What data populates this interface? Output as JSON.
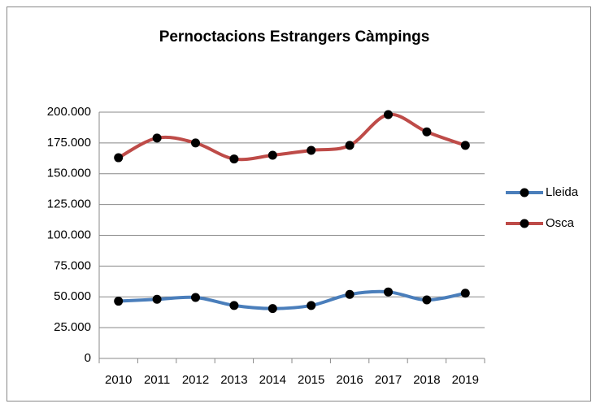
{
  "chart_data": {
    "type": "line",
    "title": "Pernoctacions Estrangers  Càmpings",
    "categories": [
      "2010",
      "2011",
      "2012",
      "2013",
      "2014",
      "2015",
      "2016",
      "2017",
      "2018",
      "2019"
    ],
    "series": [
      {
        "name": "Lleida",
        "color": "#4a7ebb",
        "values": [
          46500,
          48000,
          49500,
          43000,
          40500,
          43000,
          52000,
          54000,
          47500,
          53000
        ]
      },
      {
        "name": "Osca",
        "color": "#be4b48",
        "values": [
          163000,
          179000,
          175000,
          162000,
          165000,
          169000,
          173000,
          198000,
          184000,
          173000
        ]
      }
    ],
    "ylim": [
      0,
      200000
    ],
    "yticks": [
      0,
      {
        "value": 25000,
        "label": "25.000"
      },
      {
        "value": 50000,
        "label": "50.000"
      },
      {
        "value": 75000,
        "label": "75.000"
      },
      {
        "value": 100000,
        "label": "100.000"
      },
      {
        "value": 125000,
        "label": "125.000"
      },
      {
        "value": 150000,
        "label": "150.000"
      },
      {
        "value": 175000,
        "label": "175.000"
      },
      {
        "value": 200000,
        "label": "200.000"
      }
    ],
    "grid": true,
    "legend": "right",
    "smooth": true,
    "marker_color": "#000000"
  }
}
